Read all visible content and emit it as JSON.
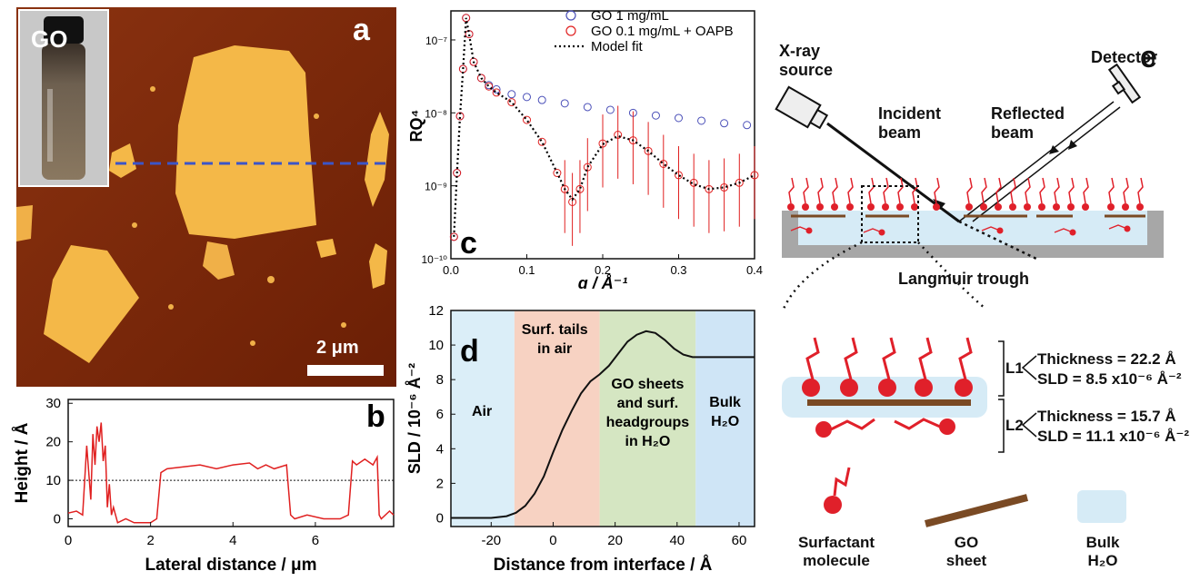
{
  "panels": {
    "a": {
      "label": "a",
      "inset_label": "GO",
      "scale_bar": "2 μm"
    },
    "b": {
      "label": "b",
      "ylabel": "Height / Å",
      "xlabel": "Lateral distance / μm",
      "yticks": [
        "0",
        "10",
        "20",
        "30"
      ],
      "xticks": [
        "0",
        "2",
        "4",
        "6"
      ]
    },
    "c": {
      "label": "c",
      "ylabel": "RQ⁴",
      "xlabel": "q / Å⁻¹",
      "yticks": [
        "10⁻⁷",
        "10⁻⁸",
        "10⁻⁹",
        "10⁻¹⁰"
      ],
      "xticks": [
        "0.0",
        "0.1",
        "0.2",
        "0.3",
        "0.4"
      ],
      "legend": [
        "GO 1 mg/mL",
        "GO 0.1 mg/mL + OAPB",
        "Model fit"
      ]
    },
    "d": {
      "label": "d",
      "ylabel": "SLD / 10⁻⁶ Å⁻²",
      "xlabel": "Distance from interface / Å",
      "yticks": [
        "0",
        "2",
        "4",
        "6",
        "8",
        "10",
        "12"
      ],
      "xticks": [
        "-20",
        "0",
        "20",
        "40",
        "60"
      ],
      "regions": [
        "Air",
        "Surf. tails in air",
        "GO sheets and surf. headgroups in H₂O",
        "Bulk H₂O"
      ]
    },
    "e": {
      "label": "e",
      "source": "X-ray source",
      "detector": "Detector",
      "incident": "Incident beam",
      "reflected": "Reflected beam",
      "trough": "Langmuir trough",
      "L1": "L1",
      "L2": "L2",
      "L1_thickness": "Thickness = 22.2 Å",
      "L1_sld": "SLD = 8.5 x10⁻⁶ Å⁻²",
      "L2_thickness": "Thickness = 15.7 Å",
      "L2_sld": "SLD = 11.1 x10⁻⁶ Å⁻²",
      "key": [
        "Surfactant molecule",
        "GO sheet",
        "Bulk H₂O"
      ]
    }
  },
  "chart_data": [
    {
      "type": "line",
      "panel": "b",
      "xlabel": "Lateral distance / μm",
      "ylabel": "Height / Å",
      "xlim": [
        0,
        7.9
      ],
      "ylim": [
        -2,
        31
      ],
      "reference_line_y": 10,
      "series": [
        {
          "x": [
            0,
            0.2,
            0.35,
            0.45,
            0.55,
            0.6,
            0.65,
            0.7,
            0.75,
            0.8,
            0.85,
            0.9,
            0.95,
            1.0,
            1.05,
            1.1,
            1.2,
            1.4,
            1.6,
            1.8,
            2.0,
            2.15,
            2.25,
            2.4,
            2.8,
            3.2,
            3.6,
            4.0,
            4.4,
            4.6,
            4.8,
            5.0,
            5.3,
            5.4,
            5.5,
            5.8,
            6.2,
            6.6,
            6.8,
            6.9,
            7.0,
            7.2,
            7.4,
            7.5,
            7.55,
            7.6,
            7.8,
            7.9
          ],
          "y": [
            1.5,
            2,
            1,
            19,
            5,
            22,
            14,
            24,
            20,
            25,
            15,
            19,
            3,
            9,
            1,
            3,
            -1,
            0,
            -1,
            -1,
            -1,
            0,
            12,
            13,
            13.5,
            14,
            13,
            14,
            14.5,
            13,
            14,
            13,
            14,
            1,
            0,
            1,
            0,
            0,
            1,
            15,
            14,
            15.5,
            14,
            16,
            1,
            0,
            2,
            1
          ]
        }
      ]
    },
    {
      "type": "scatter",
      "panel": "c",
      "xlabel": "q / Å⁻¹",
      "ylabel": "RQ⁴",
      "log_y": true,
      "xlim": [
        0,
        0.4
      ],
      "ylim": [
        1e-10,
        2.5e-07
      ],
      "series": [
        {
          "name": "GO 1 mg/mL",
          "color": "#4a4fb8",
          "x": [
            0.004,
            0.008,
            0.012,
            0.016,
            0.02,
            0.024,
            0.03,
            0.04,
            0.05,
            0.06,
            0.08,
            0.1,
            0.12,
            0.15,
            0.18,
            0.21,
            0.24,
            0.27,
            0.3,
            0.33,
            0.36,
            0.39
          ],
          "y": [
            2e-10,
            1.5e-09,
            9e-09,
            4e-08,
            2e-07,
            1.2e-07,
            5e-08,
            3e-08,
            2.4e-08,
            2.1e-08,
            1.8e-08,
            1.65e-08,
            1.5e-08,
            1.35e-08,
            1.2e-08,
            1.1e-08,
            1e-08,
            9.2e-09,
            8.5e-09,
            7.8e-09,
            7.2e-09,
            6.8e-09
          ]
        },
        {
          "name": "GO 0.1 mg/mL + OAPB",
          "color": "#e02020",
          "x": [
            0.004,
            0.008,
            0.012,
            0.016,
            0.02,
            0.024,
            0.03,
            0.04,
            0.05,
            0.06,
            0.08,
            0.1,
            0.12,
            0.14,
            0.15,
            0.16,
            0.17,
            0.18,
            0.2,
            0.22,
            0.24,
            0.26,
            0.28,
            0.3,
            0.32,
            0.34,
            0.36,
            0.38,
            0.4
          ],
          "y": [
            2e-10,
            1.5e-09,
            9e-09,
            4e-08,
            2e-07,
            1.2e-07,
            5e-08,
            3e-08,
            2.3e-08,
            1.9e-08,
            1.4e-08,
            8e-09,
            4e-09,
            1.5e-09,
            9e-10,
            6e-10,
            9e-10,
            1.8e-09,
            3.8e-09,
            5e-09,
            4.2e-09,
            3e-09,
            2e-09,
            1.4e-09,
            1.1e-09,
            9e-10,
            9.5e-10,
            1.1e-09,
            1.4e-09
          ]
        },
        {
          "name": "Model fit",
          "color": "#000000",
          "style": "dotted",
          "x": [
            0.004,
            0.008,
            0.012,
            0.016,
            0.02,
            0.024,
            0.03,
            0.04,
            0.05,
            0.06,
            0.08,
            0.1,
            0.12,
            0.14,
            0.15,
            0.16,
            0.17,
            0.18,
            0.2,
            0.22,
            0.24,
            0.26,
            0.28,
            0.3,
            0.32,
            0.34,
            0.36,
            0.38,
            0.4
          ],
          "y": [
            2e-10,
            1.5e-09,
            9e-09,
            4e-08,
            2e-07,
            1.2e-07,
            5e-08,
            3e-08,
            2.3e-08,
            1.9e-08,
            1.4e-08,
            8e-09,
            4e-09,
            1.5e-09,
            9e-10,
            6.5e-10,
            9e-10,
            1.8e-09,
            3.7e-09,
            4.8e-09,
            4.2e-09,
            3e-09,
            2e-09,
            1.4e-09,
            1.05e-09,
            9e-10,
            9.5e-10,
            1.1e-09,
            1.4e-09
          ]
        }
      ]
    },
    {
      "type": "line",
      "panel": "d",
      "xlabel": "Distance from interface / Å",
      "ylabel": "SLD / 10⁻⁶ Å⁻²",
      "xlim": [
        -33,
        65
      ],
      "ylim": [
        -0.5,
        12
      ],
      "regions": [
        {
          "from": -33,
          "to": -12.5,
          "color": "#dbeef8"
        },
        {
          "from": -12.5,
          "to": 15,
          "color": "#f7d2c2"
        },
        {
          "from": 15,
          "to": 46,
          "color": "#d5e6c2"
        },
        {
          "from": 46,
          "to": 65,
          "color": "#cfe5f6"
        }
      ],
      "series": [
        {
          "x": [
            -33,
            -20,
            -15,
            -12,
            -9,
            -6,
            -3,
            0,
            3,
            6,
            9,
            12,
            15,
            18,
            21,
            24,
            27,
            30,
            33,
            36,
            39,
            42,
            45,
            48,
            52,
            56,
            60,
            65
          ],
          "y": [
            0,
            0,
            0.1,
            0.3,
            0.7,
            1.4,
            2.4,
            3.8,
            5.1,
            6.2,
            7.2,
            7.9,
            8.3,
            8.8,
            9.5,
            10.2,
            10.6,
            10.8,
            10.7,
            10.3,
            9.8,
            9.45,
            9.3,
            9.3,
            9.3,
            9.3,
            9.3,
            9.3
          ]
        }
      ]
    }
  ]
}
